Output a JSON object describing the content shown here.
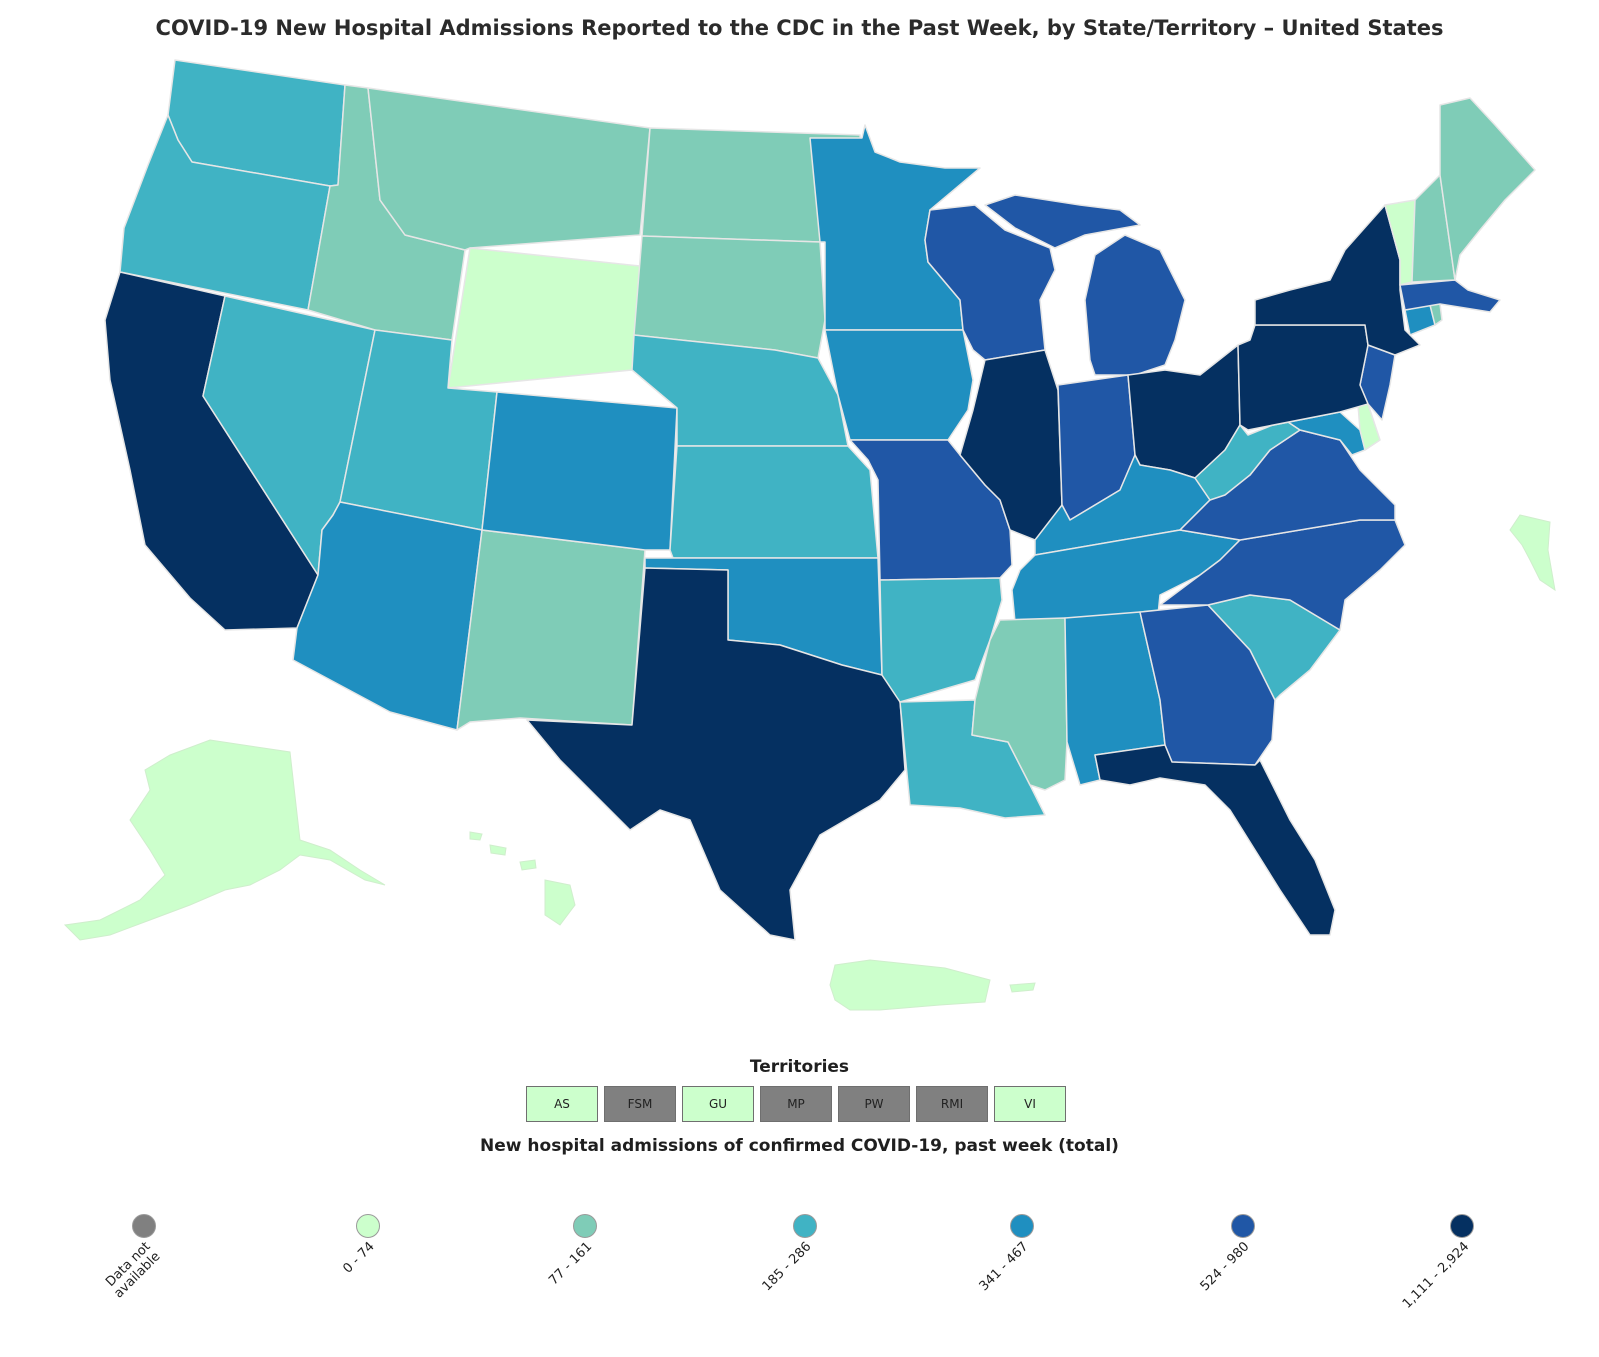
{
  "title": "COVID-19 New Hospital Admissions Reported to the CDC in the Past Week, by State/Territory – United States",
  "colors": {
    "na": "#808080",
    "c1": "#ccffcc",
    "c2": "#7fccb7",
    "c3": "#40b3c4",
    "c4": "#1f8fc0",
    "c5": "#2057a6",
    "c6": "#053061",
    "border": "#e6e6e6"
  },
  "states": {
    "WA": "c3",
    "OR": "c3",
    "CA": "c6",
    "NV": "c3",
    "ID": "c2",
    "MT": "c2",
    "WY": "c1",
    "UT": "c3",
    "AZ": "c4",
    "NM": "c2",
    "CO": "c4",
    "ND": "c2",
    "SD": "c2",
    "NE": "c3",
    "KS": "c3",
    "OK": "c4",
    "TX": "c6",
    "MN": "c4",
    "IA": "c4",
    "MO": "c5",
    "AR": "c3",
    "LA": "c3",
    "WI": "c5",
    "IL": "c6",
    "MI": "c5",
    "IN": "c5",
    "OH": "c6",
    "KY": "c4",
    "TN": "c4",
    "MS": "c2",
    "AL": "c4",
    "GA": "c5",
    "FL": "c6",
    "SC": "c3",
    "NC": "c5",
    "VA": "c5",
    "WV": "c3",
    "MD": "c4",
    "DE": "c1",
    "NJ": "c5",
    "PA": "c6",
    "NY": "c6",
    "CT": "c4",
    "RI": "c2",
    "MA": "c5",
    "VT": "c1",
    "NH": "c2",
    "ME": "c2",
    "AK": "c1",
    "HI": "c1",
    "PR": "c1",
    "VI": "c1"
  },
  "territories": {
    "title": "Territories",
    "items": [
      {
        "label": "AS",
        "category": "c1"
      },
      {
        "label": "FSM",
        "category": "na"
      },
      {
        "label": "GU",
        "category": "c1"
      },
      {
        "label": "MP",
        "category": "na"
      },
      {
        "label": "PW",
        "category": "na"
      },
      {
        "label": "RMI",
        "category": "na"
      },
      {
        "label": "VI",
        "category": "c1"
      }
    ]
  },
  "legend": {
    "title": "New hospital admissions of confirmed COVID-19, past week (total)",
    "items": [
      {
        "key": "na",
        "label": "Data not available"
      },
      {
        "key": "c1",
        "label": "0 - 74"
      },
      {
        "key": "c2",
        "label": "77 - 161"
      },
      {
        "key": "c3",
        "label": "185 - 286"
      },
      {
        "key": "c4",
        "label": "341 - 467"
      },
      {
        "key": "c5",
        "label": "524 - 980"
      },
      {
        "key": "c6",
        "label": "1,111 - 2,924"
      }
    ]
  }
}
